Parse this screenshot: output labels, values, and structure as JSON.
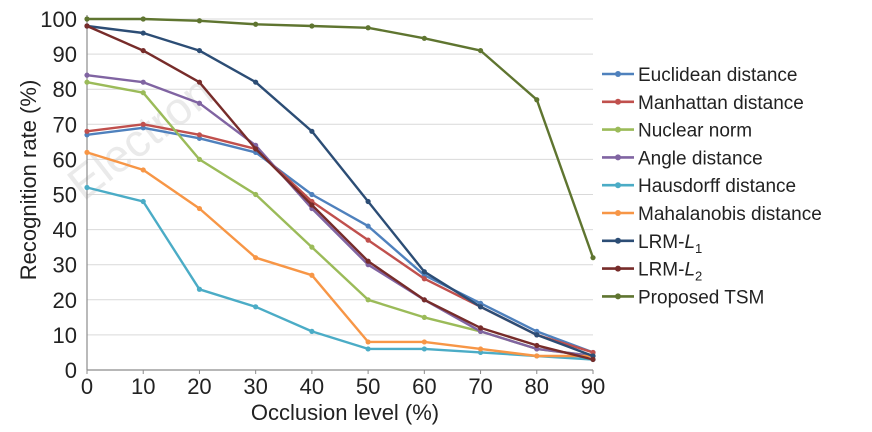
{
  "chart_data": {
    "type": "line",
    "xlabel": "Occlusion level (%)",
    "ylabel": "Recognition rate (%)",
    "x": [
      0,
      10,
      20,
      30,
      40,
      50,
      60,
      70,
      80,
      90
    ],
    "x_ticks": [
      "0",
      "10",
      "20",
      "30",
      "40",
      "50",
      "60",
      "70",
      "80",
      "90"
    ],
    "y_ticks": [
      "0",
      "10",
      "20",
      "30",
      "40",
      "50",
      "60",
      "70",
      "80",
      "90",
      "100"
    ],
    "xlim": [
      0,
      90
    ],
    "ylim": [
      0,
      100
    ],
    "grid": "horizontal",
    "legend_position": "right",
    "watermark": "Electron",
    "series": [
      {
        "name": "Euclidean distance",
        "color": "#4f81bd",
        "values": [
          67,
          69,
          66,
          62,
          50,
          41,
          27,
          19,
          11,
          5
        ]
      },
      {
        "name": "Manhattan distance",
        "color": "#c0504d",
        "values": [
          68,
          70,
          67,
          63,
          48,
          37,
          26,
          18,
          10,
          5
        ]
      },
      {
        "name": "Nuclear norm",
        "color": "#9bbb59",
        "values": [
          82,
          79,
          60,
          50,
          35,
          20,
          15,
          11,
          6,
          4
        ]
      },
      {
        "name": "Angle distance",
        "color": "#8064a2",
        "values": [
          84,
          82,
          76,
          64,
          46,
          30,
          20,
          11,
          6,
          4
        ]
      },
      {
        "name": "Hausdorff distance",
        "color": "#4bacc6",
        "values": [
          52,
          48,
          23,
          18,
          11,
          6,
          6,
          5,
          4,
          3
        ]
      },
      {
        "name": "Mahalanobis distance",
        "color": "#f79646",
        "values": [
          62,
          57,
          46,
          32,
          27,
          8,
          8,
          6,
          4,
          4
        ]
      },
      {
        "name": "LRM-L1",
        "name_main": "LRM-",
        "name_italic": "L",
        "name_sub": "1",
        "color": "#2c4d75",
        "values": [
          98,
          96,
          91,
          82,
          68,
          48,
          28,
          18,
          10,
          4
        ]
      },
      {
        "name": "LRM-L2",
        "name_main": "LRM-",
        "name_italic": "L",
        "name_sub": "2",
        "color": "#772c2a",
        "values": [
          98,
          91,
          82,
          63,
          47,
          31,
          20,
          12,
          7,
          3
        ]
      },
      {
        "name": "Proposed TSM",
        "color": "#5f7530",
        "values": [
          100,
          100,
          99.5,
          98.5,
          98,
          97.5,
          94.5,
          91,
          77,
          32
        ]
      }
    ]
  }
}
